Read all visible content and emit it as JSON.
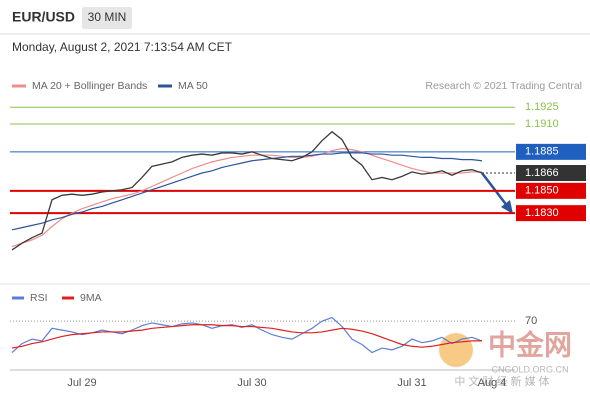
{
  "header": {
    "symbol": "EUR/USD",
    "timeframe": "30 MIN",
    "datetime": "Monday, August 2, 2021 7:13:54 AM CET"
  },
  "chart_data": [
    {
      "type": "line",
      "credit": "Research © 2021 Trading Central",
      "categories": [
        null,
        null,
        null,
        null,
        null,
        null,
        null,
        "Jul 29",
        null,
        null,
        null,
        null,
        null,
        null,
        null,
        null,
        null,
        null,
        null,
        null,
        null,
        null,
        null,
        null,
        "Jul 30",
        null,
        null,
        null,
        null,
        null,
        null,
        null,
        null,
        null,
        null,
        null,
        null,
        null,
        null,
        null,
        "Jul 31",
        null,
        null,
        null,
        null,
        null,
        null,
        null,
        "Aug 4"
      ],
      "price_color": "#3a3a3a",
      "values": [
        1.1797,
        1.1803,
        1.1808,
        1.1812,
        1.1842,
        1.1846,
        1.1847,
        1.1846,
        1.1847,
        1.1849,
        1.185,
        1.1851,
        1.1853,
        1.1862,
        1.1872,
        1.1874,
        1.1876,
        1.188,
        1.1882,
        1.1883,
        1.1882,
        1.1884,
        1.1884,
        1.1883,
        1.1885,
        1.1882,
        1.1879,
        1.1878,
        1.1877,
        1.188,
        1.1885,
        1.1895,
        1.1903,
        1.1896,
        1.188,
        1.1873,
        1.186,
        1.1862,
        1.186,
        1.1863,
        1.1867,
        1.1865,
        1.1866,
        1.1868,
        1.1864,
        1.1868,
        1.1869,
        1.1866,
        null
      ],
      "series": [
        {
          "name": "MA 20 + Bollinger Bands",
          "color": "#f08c8c",
          "values": [
            1.18,
            1.1803,
            1.1806,
            1.181,
            1.1818,
            1.1825,
            1.183,
            1.1834,
            1.1837,
            1.184,
            1.1843,
            1.1845,
            1.1847,
            1.185,
            1.1854,
            1.1858,
            1.1862,
            1.1866,
            1.187,
            1.1873,
            1.1876,
            1.1878,
            1.188,
            1.1881,
            1.1882,
            1.1882,
            1.1882,
            1.1881,
            1.188,
            1.188,
            1.1881,
            1.1883,
            1.1886,
            1.1888,
            1.1887,
            1.1885,
            1.1882,
            1.1879,
            1.1876,
            1.1873,
            1.187,
            1.1868,
            1.1866,
            1.1866,
            1.1866,
            1.1866,
            1.1867,
            1.1867,
            null
          ]
        },
        {
          "name": "MA 50",
          "color": "#2a5599",
          "values": [
            1.1815,
            1.1817,
            1.1819,
            1.1821,
            1.1824,
            1.1826,
            1.1829,
            1.1831,
            1.1834,
            1.1836,
            1.1839,
            1.1842,
            1.1845,
            1.1848,
            1.1851,
            1.1854,
            1.1857,
            1.186,
            1.1863,
            1.1866,
            1.1868,
            1.1871,
            1.1873,
            1.1875,
            1.1877,
            1.1878,
            1.1879,
            1.188,
            1.1881,
            1.1881,
            1.1882,
            1.1883,
            1.1883,
            1.1884,
            1.1884,
            1.1884,
            1.1883,
            1.1883,
            1.1882,
            1.1882,
            1.1881,
            1.188,
            1.188,
            1.1879,
            1.1879,
            1.1878,
            1.1878,
            1.1877,
            null
          ]
        }
      ],
      "levels": [
        {
          "value": 1.1925,
          "color": "#8bc34a",
          "badge": false
        },
        {
          "value": 1.191,
          "label": "1.1910",
          "color": "#8bc34a",
          "badge": false
        },
        {
          "value": 1.1885,
          "color": "#1f5fbf",
          "badge": true
        },
        {
          "value": 1.1866,
          "color": "#333333",
          "badge": true,
          "dash": true
        },
        {
          "value": 1.185,
          "label": "1.1850",
          "color": "#e00000",
          "badge": true
        },
        {
          "value": 1.183,
          "label": "1.1830",
          "color": "#e00000",
          "badge": true
        }
      ],
      "ylim": [
        1.177,
        1.1936
      ]
    },
    {
      "type": "line",
      "series": [
        {
          "name": "RSI",
          "color": "#5b7fd6",
          "values": [
            35,
            45,
            50,
            48,
            62,
            60,
            58,
            55,
            57,
            60,
            58,
            56,
            60,
            65,
            68,
            66,
            64,
            67,
            68,
            66,
            62,
            65,
            66,
            63,
            66,
            60,
            55,
            52,
            50,
            56,
            62,
            70,
            74,
            64,
            50,
            44,
            35,
            40,
            38,
            42,
            50,
            46,
            48,
            52,
            45,
            50,
            52,
            48,
            null
          ]
        },
        {
          "name": "9MA",
          "color": "#e02020",
          "values": [
            40,
            42,
            45,
            47,
            50,
            53,
            55,
            56,
            57,
            58,
            58,
            58,
            59,
            60,
            62,
            63,
            64,
            65,
            66,
            66,
            66,
            65,
            65,
            64,
            64,
            63,
            62,
            60,
            58,
            57,
            57,
            58,
            60,
            62,
            61,
            59,
            56,
            52,
            48,
            44,
            42,
            41,
            42,
            44,
            46,
            47,
            48,
            48,
            null
          ]
        }
      ],
      "ylim": [
        10,
        88
      ],
      "yticks": [
        70
      ]
    }
  ],
  "watermark": {
    "brand": "中金网",
    "site": "CNGOLD.ORG.CN",
    "slogan": "中 文 财 经 新 媒 体"
  }
}
